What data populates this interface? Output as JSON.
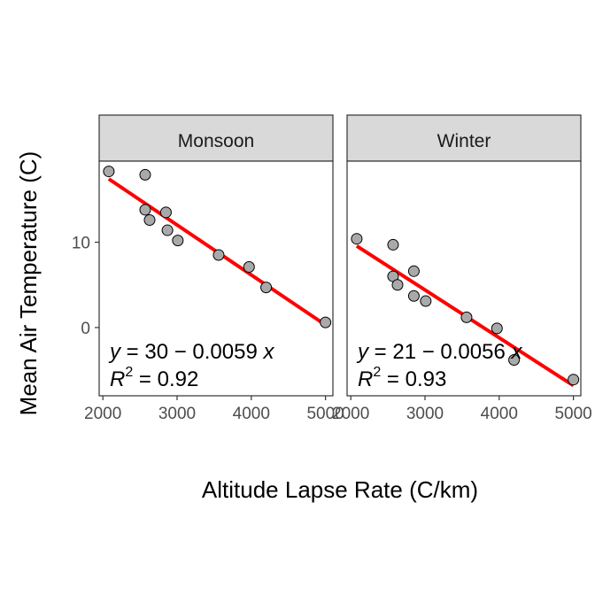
{
  "chart_data": {
    "type": "scatter",
    "xlabel": "Altitude Lapse Rate (C/km)",
    "ylabel": "Mean Air Temperature (C)",
    "xlim": [
      1950,
      5100
    ],
    "ylim": [
      -8,
      19.5
    ],
    "xticks": [
      2000,
      3000,
      4000,
      5000
    ],
    "yticks": [
      0,
      10
    ],
    "grid": false,
    "colors": {
      "points": "#a9a9a9",
      "fit": "#ff0000",
      "strip": "#d9d9d9"
    },
    "facets": [
      {
        "strip": "Monsoon",
        "x": [
          2080,
          2570,
          2570,
          2630,
          2850,
          2870,
          3010,
          3560,
          3970,
          4200,
          5000
        ],
        "y": [
          18.3,
          17.9,
          13.8,
          12.6,
          13.5,
          11.4,
          10.2,
          8.5,
          7.1,
          4.7,
          0.6
        ],
        "fit": {
          "intercept": 29.6,
          "slope": -0.00586
        },
        "eq_prefix": "y",
        "eq_mid": " = 30 − 0.0059 ",
        "eq_var": "x",
        "r2_label": "R",
        "r2_sup": "2",
        "r2_value": " = 0.92"
      },
      {
        "strip": "Winter",
        "x": [
          2080,
          2570,
          2570,
          2630,
          2850,
          2850,
          3010,
          3560,
          3970,
          4200,
          5000
        ],
        "y": [
          10.4,
          9.7,
          6.0,
          5.0,
          6.6,
          3.7,
          3.1,
          1.2,
          -0.1,
          -3.8,
          -6.1
        ],
        "fit": {
          "intercept": 21.2,
          "slope": -0.0056
        },
        "eq_prefix": "y",
        "eq_mid": " = 21 − 0.0056 ",
        "eq_var": "x",
        "r2_label": "R",
        "r2_sup": "2",
        "r2_value": " = 0.93"
      }
    ]
  }
}
